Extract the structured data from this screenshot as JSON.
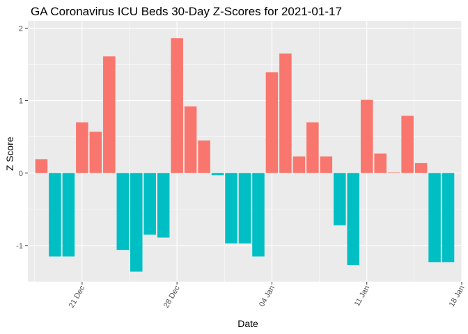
{
  "chart_data": {
    "type": "bar",
    "title": "GA Coronavirus ICU Beds 30-Day Z-Scores for 2021-01-17",
    "xlabel": "Date",
    "ylabel": "Z Score",
    "ylim": [
      -1.5,
      2.1
    ],
    "y_ticks": [
      -1,
      0,
      1,
      2
    ],
    "y_tick_labels": [
      "-1",
      "0",
      "1",
      "2"
    ],
    "x_ticks": [
      "2020-12-21",
      "2020-12-28",
      "2021-01-04",
      "2021-01-11",
      "2021-01-18"
    ],
    "x_tick_labels": [
      "21 Dec",
      "28 Dec",
      "04 Jan",
      "11 Jan",
      "18 Jan"
    ],
    "xlim": [
      "2020-12-17",
      "2021-01-18"
    ],
    "grid": true,
    "legend": "none",
    "colors": {
      "positive": "#F8766D",
      "negative": "#00BFC4",
      "panel": "#EBEBEB",
      "grid": "#FFFFFF"
    },
    "x": [
      "2020-12-18",
      "2020-12-19",
      "2020-12-20",
      "2020-12-21",
      "2020-12-22",
      "2020-12-23",
      "2020-12-24",
      "2020-12-25",
      "2020-12-26",
      "2020-12-27",
      "2020-12-28",
      "2020-12-29",
      "2020-12-30",
      "2020-12-31",
      "2021-01-01",
      "2021-01-02",
      "2021-01-03",
      "2021-01-04",
      "2021-01-05",
      "2021-01-06",
      "2021-01-07",
      "2021-01-08",
      "2021-01-09",
      "2021-01-10",
      "2021-01-11",
      "2021-01-12",
      "2021-01-13",
      "2021-01-14",
      "2021-01-15",
      "2021-01-16",
      "2021-01-17"
    ],
    "values": [
      0.19,
      -1.15,
      -1.15,
      0.7,
      0.57,
      1.61,
      -1.06,
      -1.36,
      -0.85,
      -0.89,
      1.86,
      0.92,
      0.45,
      -0.03,
      -0.97,
      -0.97,
      -1.15,
      1.39,
      1.65,
      0.23,
      0.7,
      0.23,
      -0.72,
      -1.27,
      1.01,
      0.27,
      0.01,
      0.79,
      0.14,
      -1.23,
      -1.23
    ]
  }
}
